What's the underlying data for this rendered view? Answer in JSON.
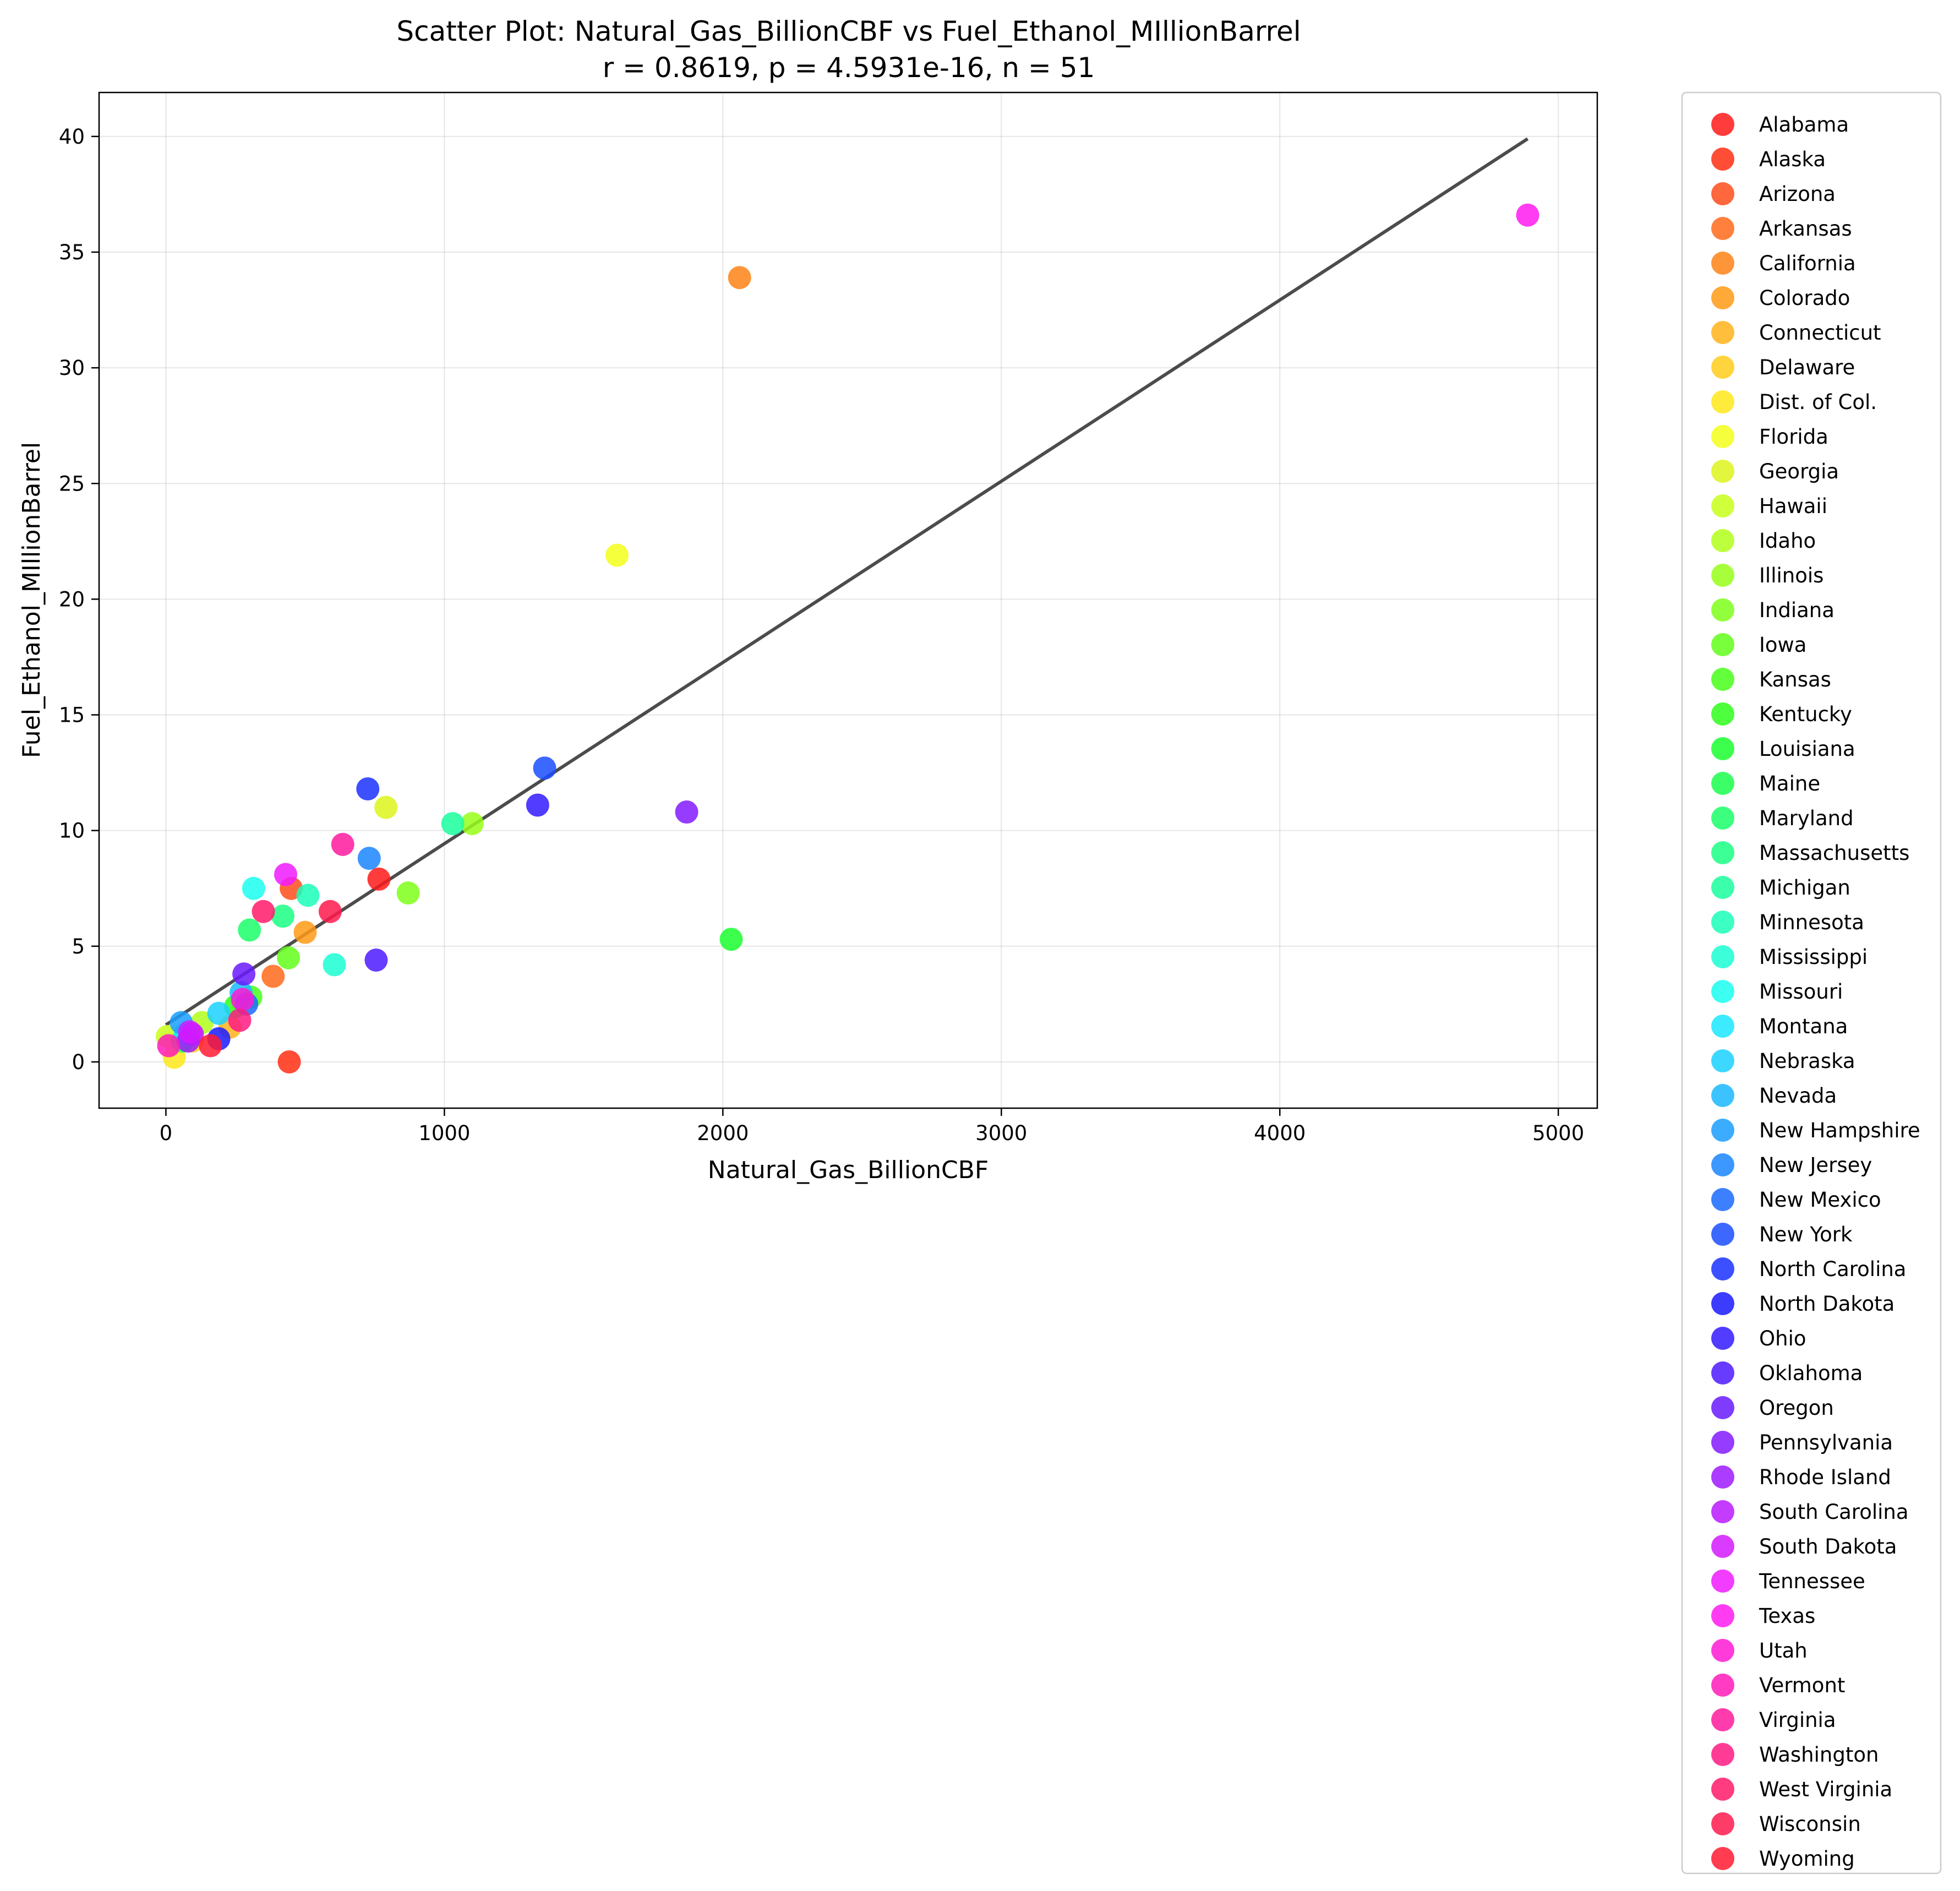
{
  "chart_data": {
    "type": "scatter",
    "title": "Scatter Plot: Natural_Gas_BillionCBF vs Fuel_Ethanol_MIllionBarrel",
    "subtitle": "r = 0.8619, p = 4.5931e-16, n = 51",
    "xlabel": "Natural_Gas_BillionCBF",
    "ylabel": "Fuel_Ethanol_MIllionBarrel",
    "xlim": [
      -240,
      5140
    ],
    "ylim": [
      -2,
      41.9
    ],
    "x_ticks": [
      0,
      1000,
      2000,
      3000,
      4000,
      5000
    ],
    "y_ticks": [
      0,
      5,
      10,
      15,
      20,
      25,
      30,
      35,
      40
    ],
    "grid": true,
    "legend_position": "outside-right",
    "fit_line": {
      "x": [
        0,
        4890
      ],
      "y": [
        1.6,
        39.9
      ],
      "color": "#404040"
    },
    "points": [
      {
        "name": "Alabama",
        "x": 765,
        "y": 7.9,
        "color": "#ff1a1a"
      },
      {
        "name": "Alaska",
        "x": 443,
        "y": 0.0,
        "color": "#ff2e13"
      },
      {
        "name": "Arizona",
        "x": 450,
        "y": 7.5,
        "color": "#ff4d1a"
      },
      {
        "name": "Arkansas",
        "x": 385,
        "y": 3.7,
        "color": "#ff6a1a"
      },
      {
        "name": "California",
        "x": 2060,
        "y": 33.9,
        "color": "#ff8316"
      },
      {
        "name": "Colorado",
        "x": 500,
        "y": 5.6,
        "color": "#ff9a15"
      },
      {
        "name": "Connecticut",
        "x": 230,
        "y": 1.5,
        "color": "#ffb41a"
      },
      {
        "name": "Delaware",
        "x": 95,
        "y": 0.9,
        "color": "#ffcd1a"
      },
      {
        "name": "Dist. of Col.",
        "x": 30,
        "y": 0.2,
        "color": "#ffe81a"
      },
      {
        "name": "Florida",
        "x": 1620,
        "y": 21.9,
        "color": "#f5ff1a"
      },
      {
        "name": "Georgia",
        "x": 790,
        "y": 11.0,
        "color": "#dcf51a"
      },
      {
        "name": "Hawaii",
        "x": 5,
        "y": 1.1,
        "color": "#c8ff1a"
      },
      {
        "name": "Idaho",
        "x": 130,
        "y": 1.7,
        "color": "#b1ff1a"
      },
      {
        "name": "Illinois",
        "x": 1100,
        "y": 10.3,
        "color": "#98ff1a"
      },
      {
        "name": "Indiana",
        "x": 870,
        "y": 7.3,
        "color": "#7fff1a"
      },
      {
        "name": "Iowa",
        "x": 440,
        "y": 4.5,
        "color": "#62ff1a"
      },
      {
        "name": "Kansas",
        "x": 305,
        "y": 2.8,
        "color": "#48ff1a"
      },
      {
        "name": "Kentucky",
        "x": 250,
        "y": 2.4,
        "color": "#2eff1a"
      },
      {
        "name": "Louisiana",
        "x": 2030,
        "y": 5.3,
        "color": "#1aff2e"
      },
      {
        "name": "Maine",
        "x": 60,
        "y": 0.9,
        "color": "#1aff4d"
      },
      {
        "name": "Maryland",
        "x": 300,
        "y": 5.7,
        "color": "#1aff6a"
      },
      {
        "name": "Massachusetts",
        "x": 420,
        "y": 6.3,
        "color": "#1aff83"
      },
      {
        "name": "Michigan",
        "x": 1030,
        "y": 10.3,
        "color": "#1aff9e"
      },
      {
        "name": "Minnesota",
        "x": 510,
        "y": 7.2,
        "color": "#1affb8"
      },
      {
        "name": "Mississippi",
        "x": 605,
        "y": 4.2,
        "color": "#1affd4"
      },
      {
        "name": "Missouri",
        "x": 315,
        "y": 7.5,
        "color": "#1afff0"
      },
      {
        "name": "Montana",
        "x": 70,
        "y": 1.2,
        "color": "#1ae8ff"
      },
      {
        "name": "Nebraska",
        "x": 190,
        "y": 2.1,
        "color": "#1ad1ff"
      },
      {
        "name": "Nevada",
        "x": 270,
        "y": 3.0,
        "color": "#1ab8ff"
      },
      {
        "name": "New Hampshire",
        "x": 55,
        "y": 1.7,
        "color": "#1a9eff"
      },
      {
        "name": "New Jersey",
        "x": 730,
        "y": 8.8,
        "color": "#1a85ff"
      },
      {
        "name": "New Mexico",
        "x": 290,
        "y": 2.5,
        "color": "#1a6aff"
      },
      {
        "name": "New York",
        "x": 1360,
        "y": 12.7,
        "color": "#1a4dff"
      },
      {
        "name": "North Carolina",
        "x": 725,
        "y": 11.8,
        "color": "#1a31ff"
      },
      {
        "name": "North Dakota",
        "x": 190,
        "y": 1.0,
        "color": "#1a1aff"
      },
      {
        "name": "Ohio",
        "x": 1335,
        "y": 11.1,
        "color": "#331aff"
      },
      {
        "name": "Oklahoma",
        "x": 755,
        "y": 4.4,
        "color": "#4d1aff"
      },
      {
        "name": "Oregon",
        "x": 280,
        "y": 3.8,
        "color": "#681aff"
      },
      {
        "name": "Pennsylvania",
        "x": 1870,
        "y": 10.8,
        "color": "#831aff"
      },
      {
        "name": "Rhode Island",
        "x": 80,
        "y": 0.9,
        "color": "#9e1aff"
      },
      {
        "name": "South Carolina",
        "x": 95,
        "y": 1.2,
        "color": "#b81aff"
      },
      {
        "name": "South Dakota",
        "x": 85,
        "y": 1.3,
        "color": "#d41aff"
      },
      {
        "name": "Tennessee",
        "x": 430,
        "y": 8.1,
        "color": "#f01aff"
      },
      {
        "name": "Texas",
        "x": 4890,
        "y": 36.6,
        "color": "#ff1af0"
      },
      {
        "name": "Utah",
        "x": 275,
        "y": 2.7,
        "color": "#ff1ad4"
      },
      {
        "name": "Vermont",
        "x": 10,
        "y": 0.7,
        "color": "#ff1ab8"
      },
      {
        "name": "Virginia",
        "x": 635,
        "y": 9.4,
        "color": "#ff1a9e"
      },
      {
        "name": "Washington",
        "x": 265,
        "y": 1.8,
        "color": "#ff1a83"
      },
      {
        "name": "West Virginia",
        "x": 350,
        "y": 6.5,
        "color": "#ff1a6a"
      },
      {
        "name": "Wisconsin",
        "x": 590,
        "y": 6.5,
        "color": "#ff1a4d"
      },
      {
        "name": "Wyoming",
        "x": 160,
        "y": 0.7,
        "color": "#ff1a31"
      }
    ]
  }
}
